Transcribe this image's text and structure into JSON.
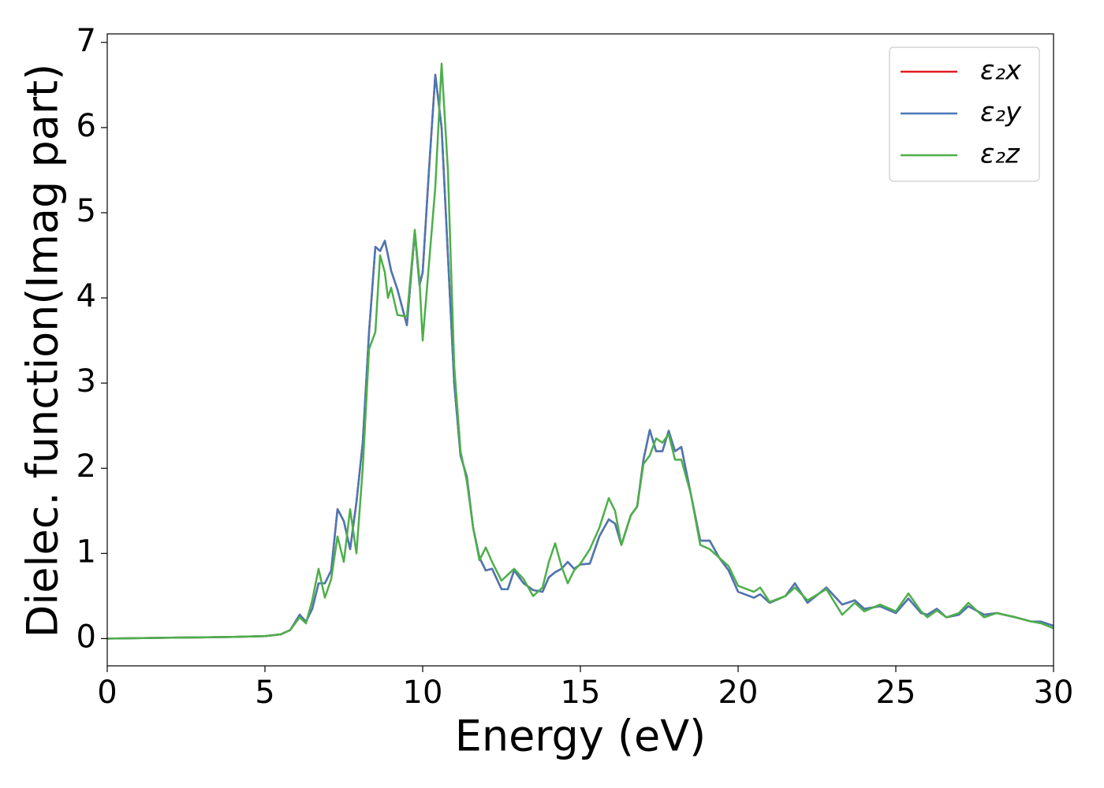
{
  "chart_data": {
    "type": "line",
    "xlabel": "Energy (eV)",
    "ylabel": "Dielec. function(Imag part)",
    "xlim": [
      0,
      30
    ],
    "ylim": [
      -0.32,
      7.1
    ],
    "xticks": [
      0,
      5,
      10,
      15,
      20,
      25,
      30
    ],
    "yticks": [
      0,
      1,
      2,
      3,
      4,
      5,
      6,
      7
    ],
    "legend": "upper right",
    "x": [
      0,
      2,
      4,
      5,
      5.5,
      5.8,
      6.1,
      6.3,
      6.5,
      6.7,
      6.9,
      7.1,
      7.3,
      7.5,
      7.7,
      7.9,
      8.1,
      8.3,
      8.5,
      8.65,
      8.8,
      8.9,
      9.0,
      9.2,
      9.5,
      9.75,
      9.9,
      10.0,
      10.2,
      10.4,
      10.6,
      10.8,
      11.0,
      11.2,
      11.4,
      11.6,
      11.8,
      12.0,
      12.2,
      12.5,
      12.7,
      12.9,
      13.2,
      13.5,
      13.8,
      14.0,
      14.2,
      14.4,
      14.6,
      14.8,
      15.0,
      15.3,
      15.6,
      15.9,
      16.1,
      16.3,
      16.6,
      16.8,
      17.0,
      17.2,
      17.4,
      17.6,
      17.8,
      18.0,
      18.2,
      18.5,
      18.8,
      19.1,
      19.4,
      19.7,
      20.0,
      20.5,
      20.7,
      21.0,
      21.5,
      21.8,
      22.2,
      22.8,
      23.3,
      23.7,
      24.0,
      24.5,
      25.0,
      25.4,
      25.8,
      26.0,
      26.3,
      26.6,
      27.0,
      27.3,
      27.8,
      28.2,
      28.8,
      29.3,
      29.6,
      30
    ],
    "series": [
      {
        "name": "ε₂x",
        "color": "#e41a1c",
        "values": [
          0,
          0.01,
          0.02,
          0.03,
          0.05,
          0.1,
          0.28,
          0.2,
          0.35,
          0.65,
          0.65,
          0.8,
          1.52,
          1.38,
          1.05,
          1.6,
          2.3,
          3.6,
          4.6,
          4.55,
          4.67,
          4.5,
          4.32,
          4.1,
          3.68,
          4.78,
          4.15,
          4.3,
          5.5,
          6.62,
          6.0,
          4.5,
          3.0,
          2.15,
          1.9,
          1.3,
          0.95,
          0.8,
          0.82,
          0.58,
          0.58,
          0.8,
          0.65,
          0.57,
          0.55,
          0.72,
          0.78,
          0.82,
          0.9,
          0.82,
          0.87,
          0.88,
          1.2,
          1.4,
          1.35,
          1.1,
          1.45,
          1.55,
          2.1,
          2.45,
          2.2,
          2.2,
          2.44,
          2.2,
          2.25,
          1.7,
          1.15,
          1.15,
          0.95,
          0.8,
          0.55,
          0.48,
          0.52,
          0.42,
          0.5,
          0.65,
          0.42,
          0.6,
          0.4,
          0.45,
          0.35,
          0.38,
          0.3,
          0.47,
          0.3,
          0.28,
          0.35,
          0.25,
          0.28,
          0.38,
          0.28,
          0.3,
          0.25,
          0.2,
          0.2,
          0.15
        ]
      },
      {
        "name": "ε₂y",
        "color": "#4a78b4",
        "values": [
          0,
          0.01,
          0.02,
          0.03,
          0.05,
          0.1,
          0.28,
          0.2,
          0.35,
          0.65,
          0.65,
          0.8,
          1.52,
          1.38,
          1.05,
          1.6,
          2.3,
          3.6,
          4.6,
          4.55,
          4.67,
          4.5,
          4.32,
          4.1,
          3.68,
          4.78,
          4.15,
          4.3,
          5.5,
          6.62,
          6.0,
          4.5,
          3.0,
          2.15,
          1.9,
          1.3,
          0.95,
          0.8,
          0.82,
          0.58,
          0.58,
          0.8,
          0.65,
          0.57,
          0.55,
          0.72,
          0.78,
          0.82,
          0.9,
          0.82,
          0.87,
          0.88,
          1.2,
          1.4,
          1.35,
          1.1,
          1.45,
          1.55,
          2.1,
          2.45,
          2.2,
          2.2,
          2.44,
          2.2,
          2.25,
          1.7,
          1.15,
          1.15,
          0.95,
          0.8,
          0.55,
          0.48,
          0.52,
          0.42,
          0.5,
          0.65,
          0.42,
          0.6,
          0.4,
          0.45,
          0.35,
          0.38,
          0.3,
          0.47,
          0.3,
          0.28,
          0.35,
          0.25,
          0.28,
          0.38,
          0.28,
          0.3,
          0.25,
          0.2,
          0.2,
          0.15
        ]
      },
      {
        "name": "ε₂z",
        "color": "#4daf4a",
        "values": [
          0,
          0.01,
          0.02,
          0.03,
          0.05,
          0.1,
          0.25,
          0.18,
          0.45,
          0.82,
          0.48,
          0.7,
          1.2,
          0.9,
          1.52,
          1.0,
          2.0,
          3.4,
          3.6,
          4.5,
          4.3,
          4.0,
          4.12,
          3.8,
          3.78,
          4.8,
          4.2,
          3.5,
          4.4,
          5.3,
          6.75,
          5.5,
          3.2,
          2.2,
          1.85,
          1.3,
          0.92,
          1.07,
          0.9,
          0.68,
          0.75,
          0.82,
          0.7,
          0.5,
          0.6,
          0.9,
          1.12,
          0.85,
          0.65,
          0.8,
          0.88,
          1.05,
          1.3,
          1.65,
          1.5,
          1.1,
          1.45,
          1.55,
          2.05,
          2.15,
          2.35,
          2.3,
          2.4,
          2.1,
          2.1,
          1.7,
          1.1,
          1.05,
          0.95,
          0.85,
          0.62,
          0.55,
          0.6,
          0.43,
          0.5,
          0.6,
          0.45,
          0.58,
          0.28,
          0.42,
          0.32,
          0.4,
          0.32,
          0.53,
          0.32,
          0.25,
          0.33,
          0.25,
          0.3,
          0.42,
          0.25,
          0.3,
          0.25,
          0.2,
          0.18,
          0.12
        ]
      }
    ]
  }
}
